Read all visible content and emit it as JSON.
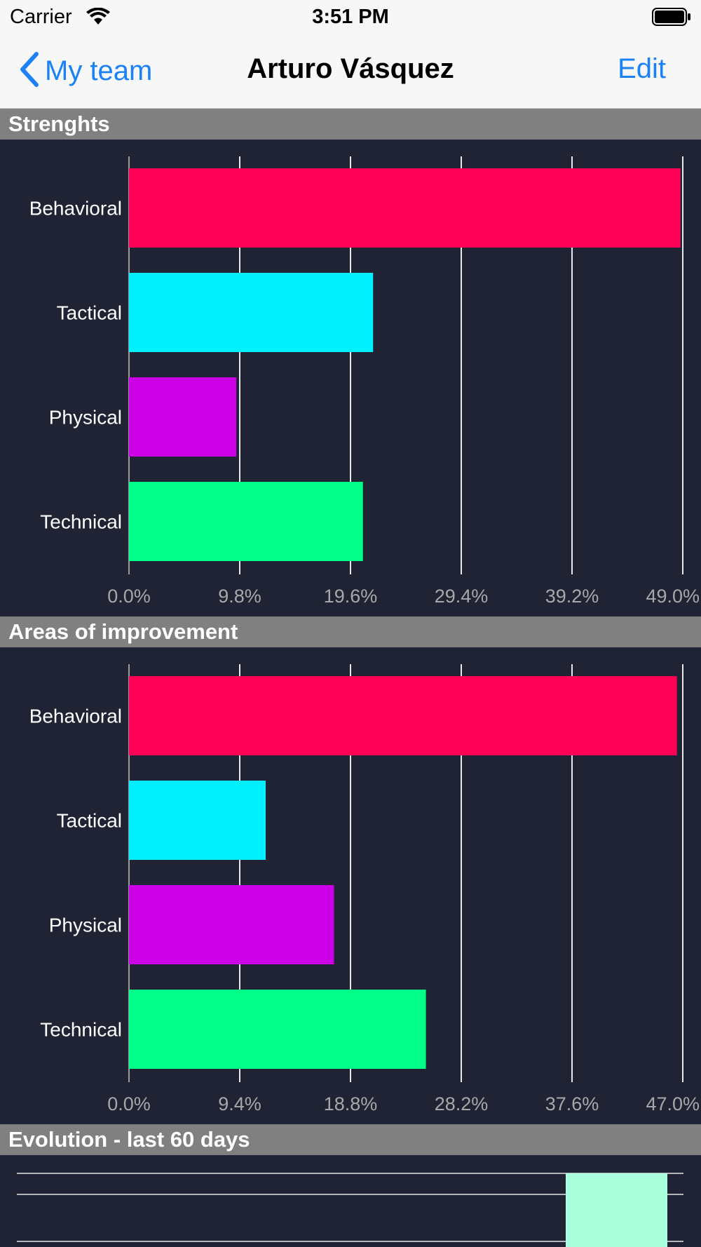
{
  "status_bar": {
    "carrier": "Carrier",
    "time": "3:51 PM"
  },
  "nav": {
    "back_label": "My team",
    "title": "Arturo Vásquez",
    "edit_label": "Edit"
  },
  "sections": [
    {
      "title": "Strenghts"
    },
    {
      "title": "Areas of improvement"
    },
    {
      "title": "Evolution - last 60 days"
    }
  ],
  "colors": {
    "Behavioral": "#ff0057",
    "Tactical": "#00f0ff",
    "Physical": "#cc00e6",
    "Technical": "#00ff88",
    "evolution_bar": "#aaffdd",
    "accent": "#1a82f6"
  },
  "chart_data": [
    {
      "type": "bar",
      "orientation": "horizontal",
      "categories": [
        "Behavioral",
        "Tactical",
        "Physical",
        "Technical"
      ],
      "values": [
        48.8,
        21.6,
        9.5,
        20.7
      ],
      "xlim": [
        0,
        49.0
      ],
      "tick_labels": [
        "0.0%",
        "9.8%",
        "19.6%",
        "29.4%",
        "39.2%",
        "49.0%"
      ],
      "grid": true
    },
    {
      "type": "bar",
      "orientation": "horizontal",
      "categories": [
        "Behavioral",
        "Tactical",
        "Physical",
        "Technical"
      ],
      "values": [
        46.5,
        11.6,
        17.4,
        25.2
      ],
      "xlim": [
        0,
        47.0
      ],
      "tick_labels": [
        "0.0%",
        "9.4%",
        "18.8%",
        "28.2%",
        "37.6%",
        "47.0%"
      ],
      "grid": true
    }
  ]
}
